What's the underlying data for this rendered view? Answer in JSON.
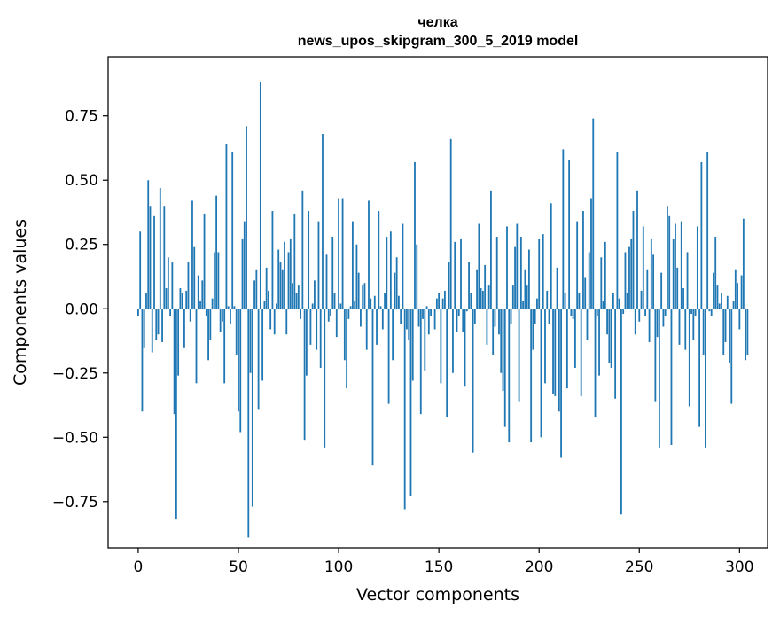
{
  "chart_data": {
    "type": "bar",
    "title": "челка",
    "subtitle": "news_upos_skipgram_300_5_2019 model",
    "xlabel": "Vector components",
    "ylabel": "Components values",
    "xlim": [
      -15,
      314
    ],
    "ylim": [
      -0.93,
      0.98
    ],
    "x_ticks": [
      0,
      50,
      100,
      150,
      200,
      250,
      300
    ],
    "x_tick_labels": [
      "0",
      "50",
      "100",
      "150",
      "200",
      "250",
      "300"
    ],
    "y_ticks": [
      -0.75,
      -0.5,
      -0.25,
      0.0,
      0.25,
      0.5,
      0.75
    ],
    "y_tick_labels": [
      "−0.75",
      "−0.50",
      "−0.25",
      "0.00",
      "0.25",
      "0.50",
      "0.75"
    ],
    "bar_color": "#1f77b4",
    "values": [
      -0.03,
      0.3,
      -0.4,
      -0.15,
      0.06,
      0.5,
      0.4,
      -0.17,
      0.36,
      -0.12,
      -0.1,
      0.47,
      -0.13,
      0.4,
      0.08,
      0.2,
      -0.03,
      0.18,
      -0.41,
      -0.82,
      -0.26,
      0.08,
      0.06,
      -0.15,
      0.07,
      0.18,
      -0.05,
      0.42,
      0.24,
      -0.29,
      0.13,
      0.03,
      0.11,
      0.37,
      -0.03,
      -0.2,
      -0.12,
      0.04,
      0.22,
      0.44,
      0.22,
      -0.09,
      -0.05,
      -0.29,
      0.64,
      0.01,
      -0.06,
      0.61,
      0.01,
      -0.18,
      -0.4,
      -0.48,
      0.27,
      0.34,
      0.71,
      -0.89,
      -0.25,
      -0.77,
      0.11,
      0.15,
      -0.39,
      0.88,
      -0.28,
      0.03,
      0.16,
      0.07,
      -0.08,
      0.38,
      -0.1,
      0.02,
      0.23,
      0.18,
      0.15,
      0.26,
      -0.1,
      0.22,
      0.27,
      0.1,
      0.37,
      0.06,
      0.09,
      -0.04,
      0.46,
      -0.51,
      -0.26,
      0.38,
      -0.14,
      0.02,
      0.11,
      -0.16,
      0.34,
      -0.23,
      0.68,
      -0.54,
      0.21,
      -0.05,
      -0.03,
      0.28,
      0.06,
      -0.11,
      0.43,
      0.02,
      0.43,
      -0.2,
      -0.31,
      -0.04,
      0.01,
      0.34,
      0.03,
      0.25,
      0.14,
      -0.07,
      0.09,
      0.1,
      -0.16,
      0.42,
      0.04,
      -0.61,
      0.05,
      -0.14,
      0.38,
      0.01,
      -0.08,
      0.06,
      0.28,
      -0.37,
      0.3,
      -0.2,
      0.14,
      0.2,
      0.05,
      -0.06,
      0.33,
      -0.78,
      -0.08,
      -0.12,
      -0.73,
      -0.28,
      0.57,
      0.25,
      -0.07,
      -0.41,
      -0.04,
      -0.24,
      0.01,
      -0.1,
      -0.03,
      0.0,
      -0.08,
      0.04,
      0.06,
      -0.29,
      0.04,
      0.07,
      -0.42,
      0.18,
      0.66,
      -0.25,
      0.26,
      -0.09,
      -0.03,
      0.27,
      -0.09,
      -0.3,
      -0.01,
      0.18,
      0.06,
      -0.56,
      -0.06,
      0.15,
      0.33,
      0.08,
      0.07,
      0.17,
      -0.14,
      0.09,
      0.46,
      -0.18,
      -0.07,
      0.28,
      -0.1,
      -0.25,
      -0.32,
      -0.46,
      0.32,
      -0.52,
      -0.06,
      0.09,
      0.24,
      0.33,
      -0.36,
      0.28,
      0.03,
      0.15,
      0.09,
      0.23,
      -0.52,
      -0.16,
      -0.06,
      0.04,
      0.27,
      -0.5,
      0.29,
      -0.29,
      0.07,
      -0.06,
      0.41,
      -0.33,
      -0.34,
      0.16,
      -0.4,
      -0.58,
      0.62,
      0.06,
      -0.31,
      0.58,
      -0.03,
      -0.04,
      -0.23,
      0.34,
      0.06,
      -0.34,
      0.38,
      0.12,
      -0.12,
      0.22,
      0.43,
      0.74,
      -0.42,
      -0.03,
      -0.26,
      0.2,
      0.03,
      0.26,
      -0.1,
      -0.21,
      -0.23,
      0.06,
      -0.35,
      0.61,
      0.04,
      -0.8,
      -0.02,
      0.22,
      0.06,
      0.24,
      0.27,
      0.38,
      -0.1,
      0.46,
      -0.05,
      0.07,
      0.32,
      -0.03,
      0.15,
      -0.13,
      0.27,
      0.21,
      -0.36,
      -0.11,
      -0.54,
      0.14,
      -0.07,
      -0.03,
      0.4,
      0.36,
      -0.53,
      0.27,
      0.33,
      0.16,
      -0.14,
      0.34,
      0.08,
      -0.16,
      0.22,
      -0.38,
      -0.02,
      -0.12,
      -0.03,
      0.32,
      -0.46,
      0.57,
      -0.18,
      -0.54,
      0.61,
      -0.01,
      -0.03,
      0.14,
      0.28,
      0.09,
      0.02,
      0.06,
      -0.18,
      -0.13,
      0.05,
      -0.21,
      -0.37,
      0.03,
      0.15,
      0.1,
      -0.08,
      0.13,
      0.35,
      -0.2,
      -0.18
    ]
  }
}
